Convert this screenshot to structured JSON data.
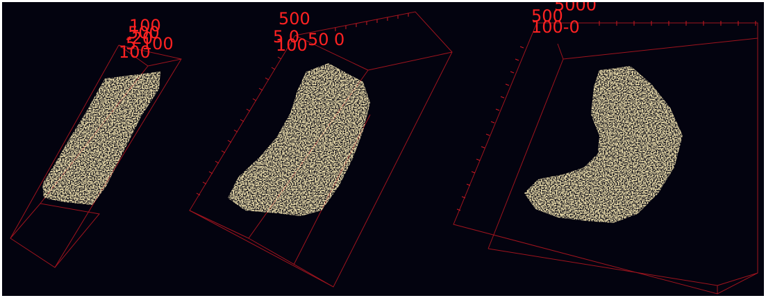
{
  "image": {
    "description_id": "three-3d-volume-renderings",
    "colors": {
      "background": "#03030f",
      "bounding_box": "#a0141e",
      "tick_marks": "#d01822",
      "labels": "#ff2222",
      "voxels": "#f2e3b0"
    }
  },
  "panels": [
    {
      "name": "panel-left",
      "labels": [
        "100",
        "500",
        "-20",
        "5 100",
        "100"
      ]
    },
    {
      "name": "panel-middle",
      "labels": [
        "500",
        "5 0",
        "50",
        "0",
        "100"
      ]
    },
    {
      "name": "panel-right",
      "labels": [
        "5000",
        "500",
        "100-0"
      ]
    }
  ]
}
